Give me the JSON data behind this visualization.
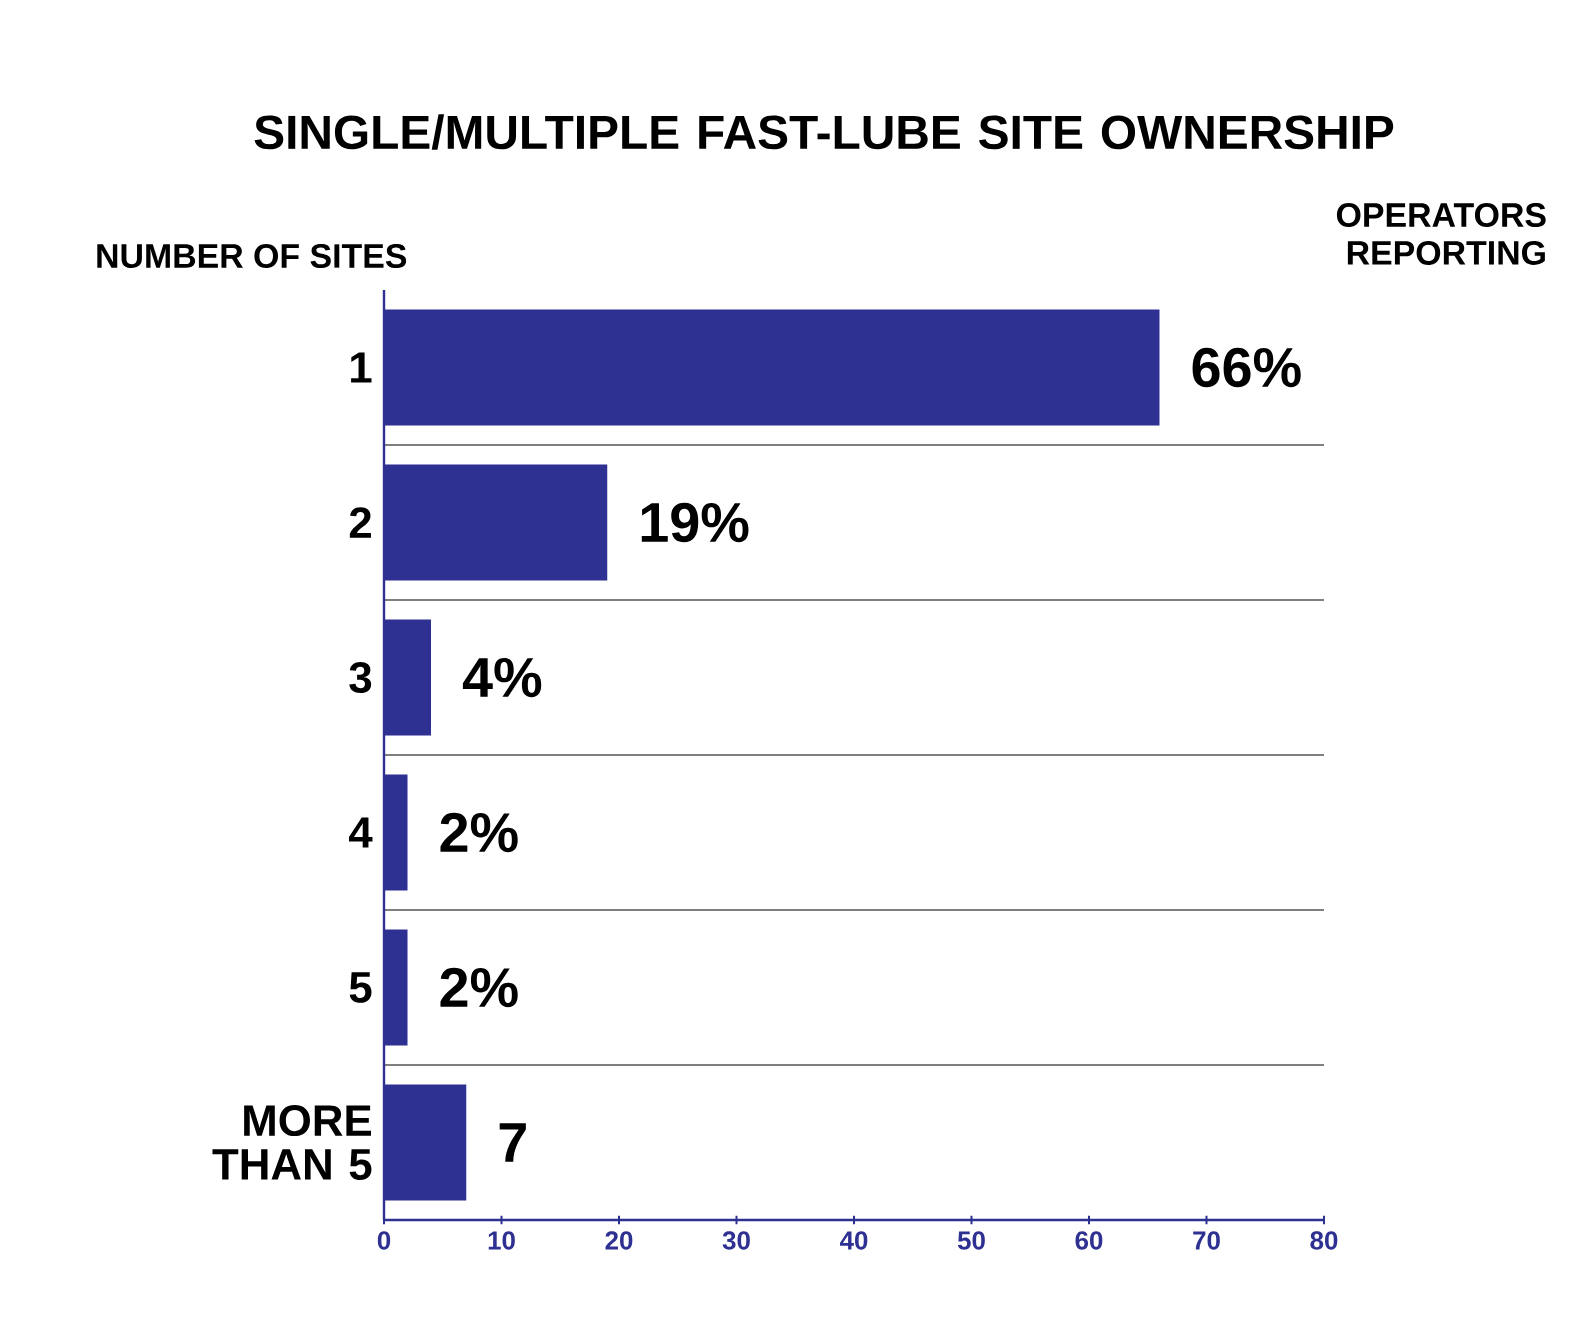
{
  "chart_data": {
    "type": "bar",
    "orientation": "horizontal",
    "title": "SINGLE/MULTIPLE FAST-LUBE SITE OWNERSHIP",
    "ylabel": "NUMBER OF SITES",
    "annotations": [
      "OPERATORS REPORTING"
    ],
    "categories": [
      "1",
      "2",
      "3",
      "4",
      "5",
      "MORE THAN 5"
    ],
    "values": [
      66,
      19,
      4,
      2,
      2,
      7
    ],
    "value_labels": [
      "66%",
      "19%",
      "4%",
      "2%",
      "2%",
      "7"
    ],
    "color": "#2e3192",
    "xlim": [
      0,
      80
    ],
    "xticks": [
      0,
      10,
      20,
      30,
      40,
      50,
      60,
      70,
      80
    ],
    "grid": "y"
  }
}
